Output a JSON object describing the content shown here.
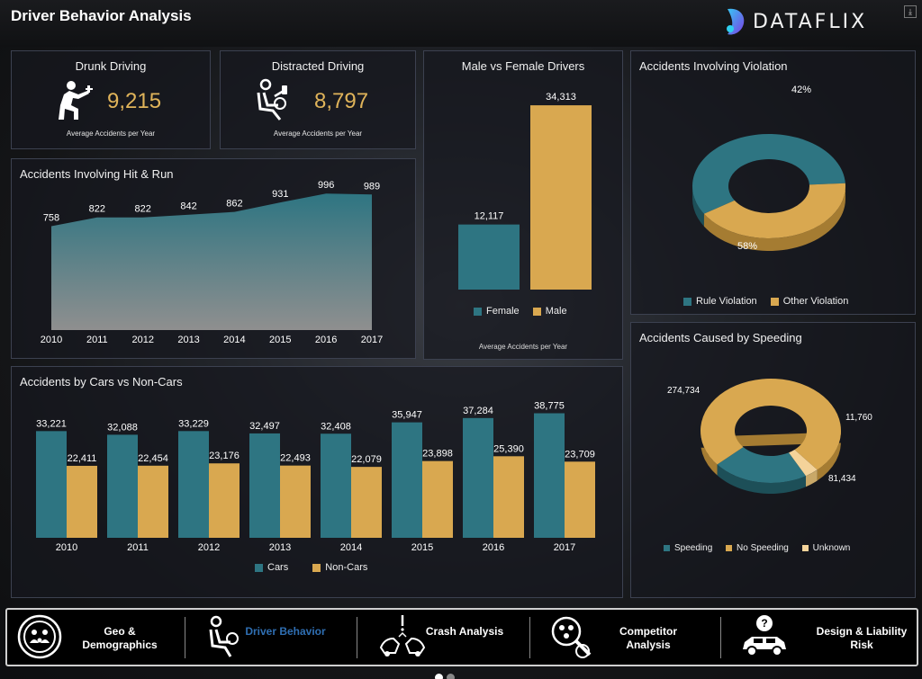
{
  "header": {
    "title": "Driver Behavior Analysis",
    "brand": "DATAFLIX",
    "corner_icon": "download-icon"
  },
  "colors": {
    "teal": "#2e7582",
    "gold": "#d9a850",
    "active": "#2f6fb3"
  },
  "kpis": [
    {
      "title": "Drunk Driving",
      "value": "9,215",
      "subtitle": "Average Accidents per Year",
      "icon": "drunk-driver-icon"
    },
    {
      "title": "Distracted Driving",
      "value": "8,797",
      "subtitle": "Average Accidents per Year",
      "icon": "distracted-driver-icon"
    }
  ],
  "chart_data": [
    {
      "id": "hit_run",
      "type": "area",
      "title": "Accidents Involving Hit & Run",
      "x": [
        "2010",
        "2011",
        "2012",
        "2013",
        "2014",
        "2015",
        "2016",
        "2017"
      ],
      "values": [
        758,
        822,
        822,
        842,
        862,
        931,
        996,
        989
      ],
      "labels": [
        "758",
        "822",
        "822",
        "842",
        "862",
        "931",
        "996",
        "989"
      ],
      "ylim": [
        0,
        1050
      ]
    },
    {
      "id": "gender",
      "type": "bar",
      "title": "Male vs Female Drivers",
      "categories": [
        "Female",
        "Male"
      ],
      "values": [
        12117,
        34313
      ],
      "labels": [
        "12,117",
        "34,313"
      ],
      "legend": [
        "Female",
        "Male"
      ],
      "footer": "Average Accidents per Year",
      "ylim": [
        0,
        36000
      ]
    },
    {
      "id": "violation",
      "type": "pie",
      "title": "Accidents Involving Violation",
      "slices": [
        {
          "name": "Rule Violation",
          "value": 58,
          "label": "58%"
        },
        {
          "name": "Other Violation",
          "value": 42,
          "label": "42%"
        }
      ]
    },
    {
      "id": "cars",
      "type": "bar",
      "title": "Accidents by Cars vs Non-Cars",
      "categories": [
        "2010",
        "2011",
        "2012",
        "2013",
        "2014",
        "2015",
        "2016",
        "2017"
      ],
      "series": [
        {
          "name": "Cars",
          "values": [
            33221,
            32088,
            33229,
            32497,
            32408,
            35947,
            37284,
            38775
          ],
          "labels": [
            "33,221",
            "32,088",
            "33,229",
            "32,497",
            "32,408",
            "35,947",
            "37,284",
            "38,775"
          ]
        },
        {
          "name": "Non-Cars",
          "values": [
            22411,
            22454,
            23176,
            22493,
            22079,
            23898,
            25390,
            23709
          ],
          "labels": [
            "22,411",
            "22,454",
            "23,176",
            "22,493",
            "22,079",
            "23,898",
            "25,390",
            "23,709"
          ]
        }
      ],
      "ylim": [
        0,
        42000
      ]
    },
    {
      "id": "speeding",
      "type": "pie",
      "title": "Accidents Caused by Speeding",
      "slices": [
        {
          "name": "Speeding",
          "value": 81434,
          "label": "81,434"
        },
        {
          "name": "No Speeding",
          "value": 274734,
          "label": "274,734"
        },
        {
          "name": "Unknown",
          "value": 11760,
          "label": "11,760"
        }
      ]
    }
  ],
  "nav": [
    {
      "label": "Geo & Demographics",
      "icon": "demographics-icon",
      "active": false
    },
    {
      "label": "Driver Behavior",
      "icon": "driver-icon",
      "active": true
    },
    {
      "label": "Crash Analysis",
      "icon": "crash-icon",
      "active": false
    },
    {
      "label": "Competitor Analysis",
      "icon": "competitor-icon",
      "active": false
    },
    {
      "label": "Design & Liability Risk",
      "icon": "car-question-icon",
      "active": false
    }
  ],
  "pager": {
    "page": 1,
    "pages": 2
  }
}
